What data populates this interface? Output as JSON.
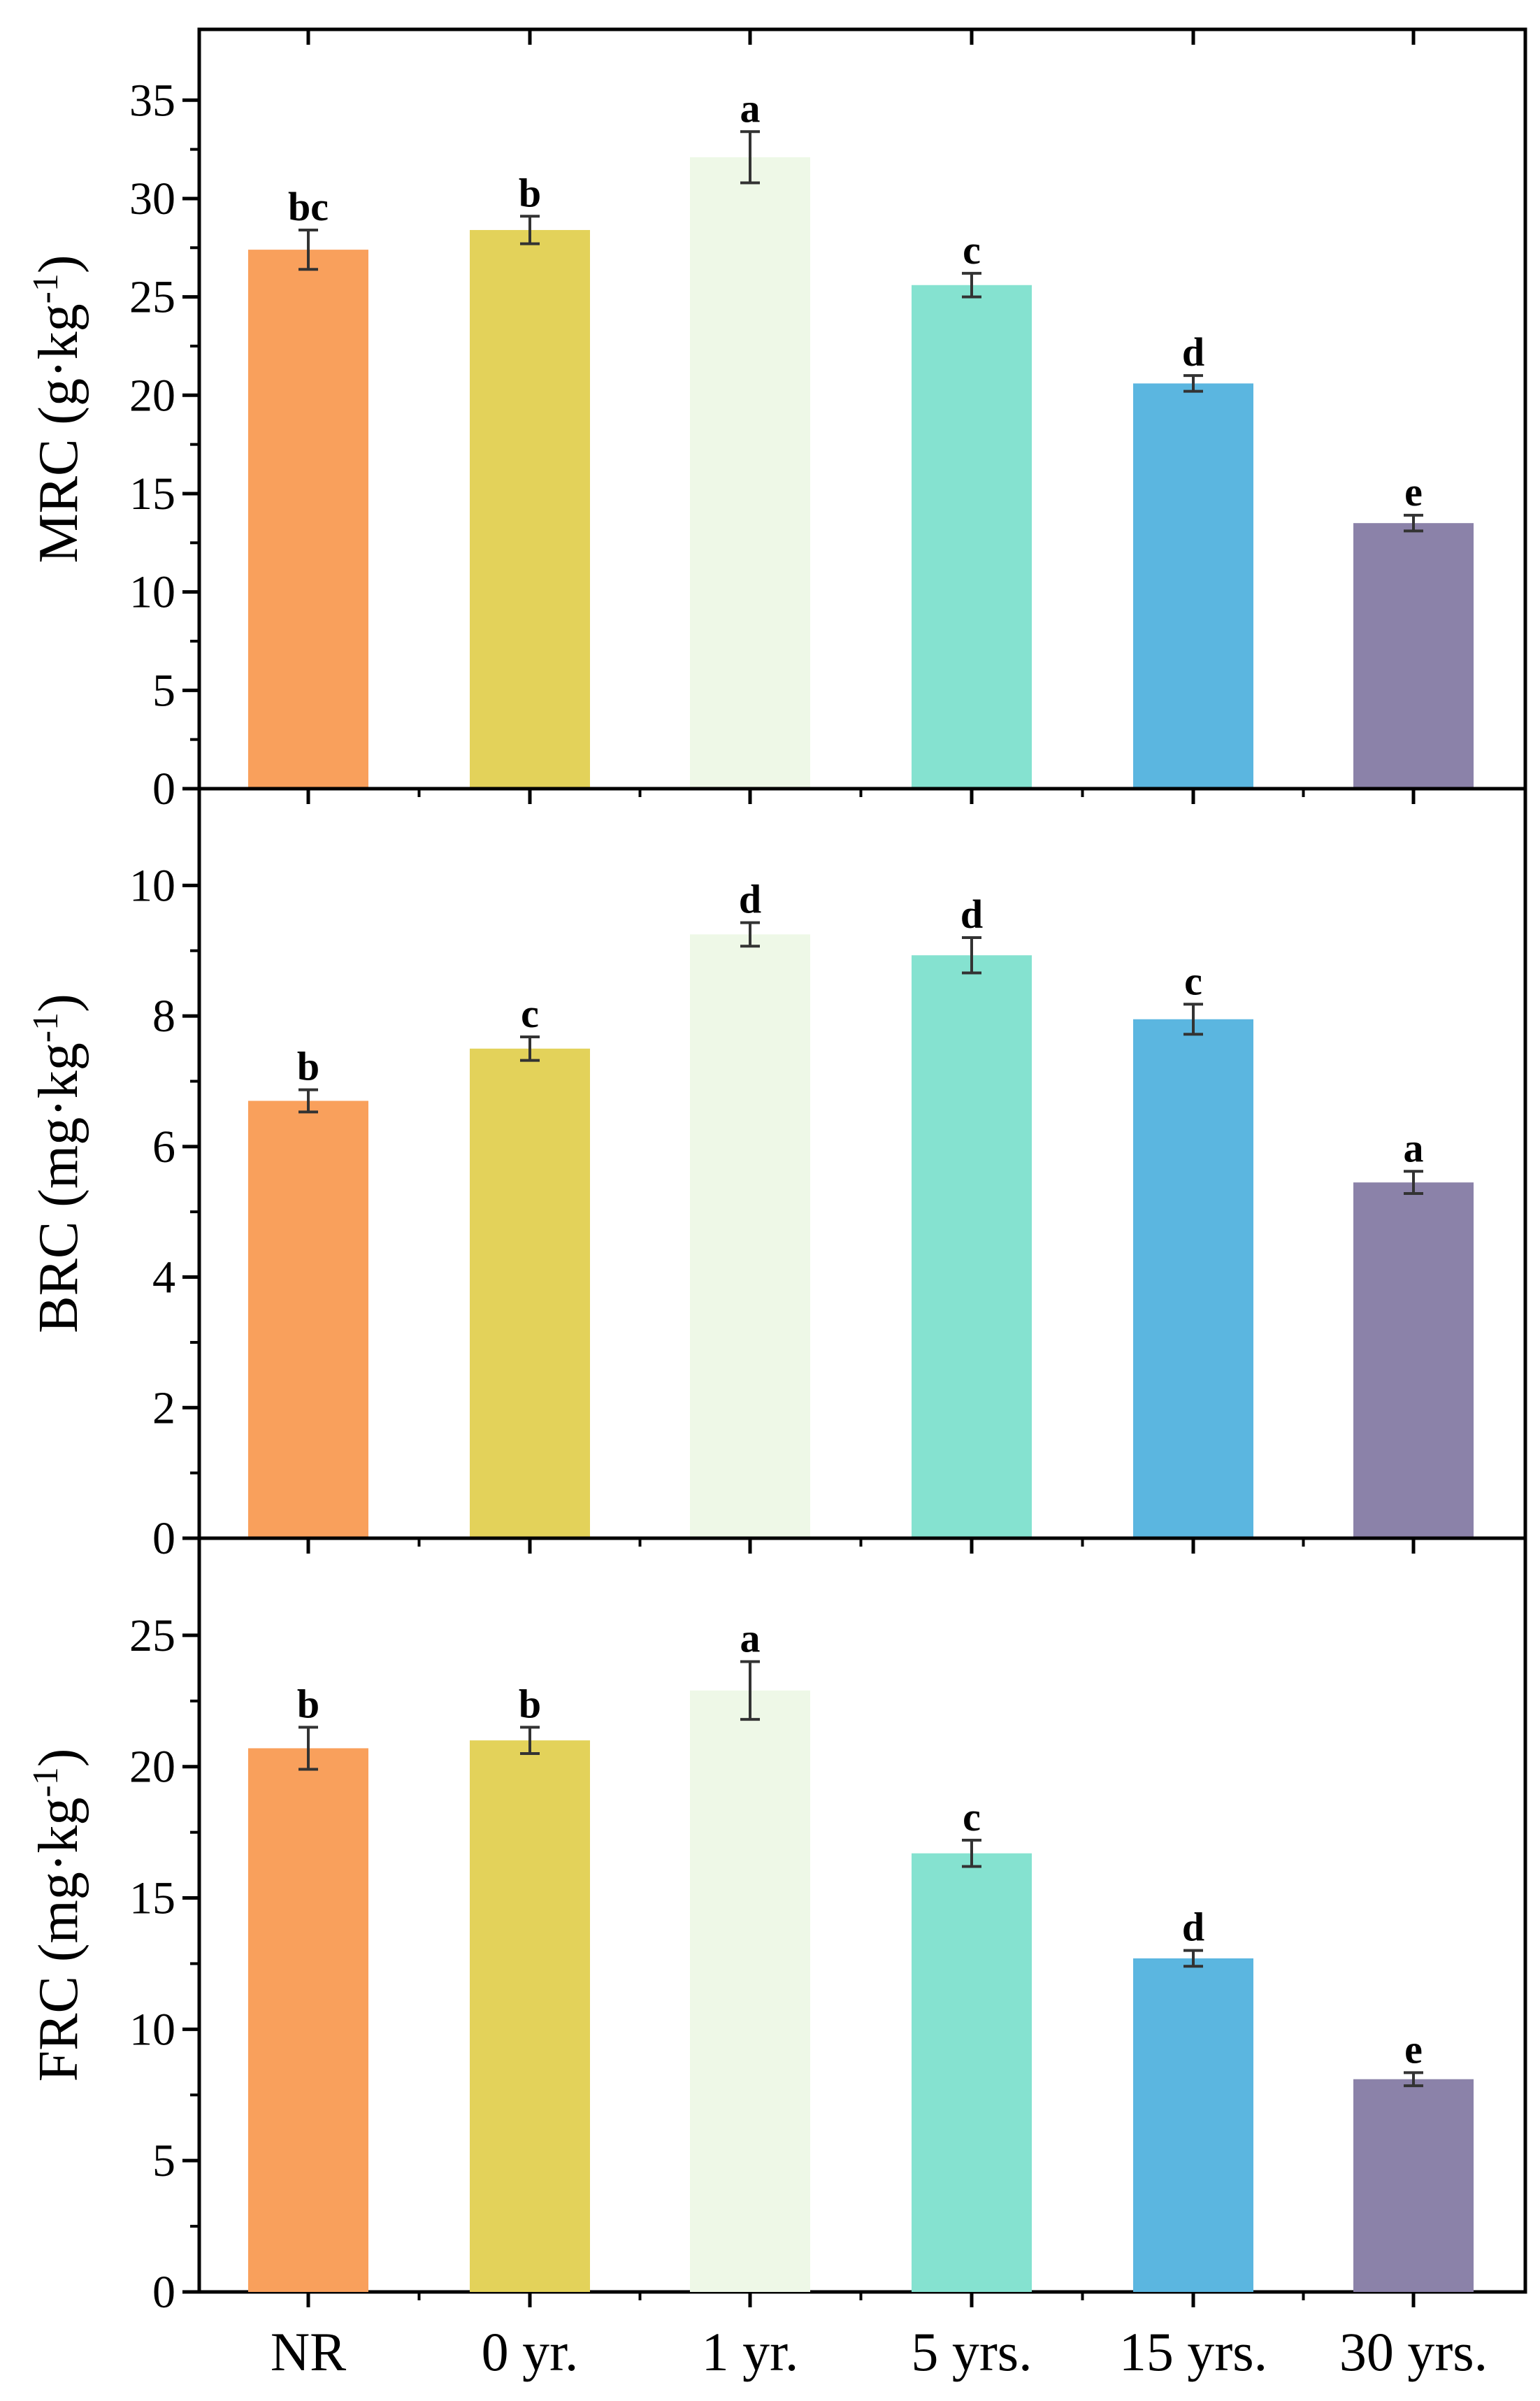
{
  "colors": {
    "bars": [
      "#F9A05C",
      "#E3D25A",
      "#EEF8E7",
      "#85E2D0",
      "#5BB6E0",
      "#8B82A9"
    ],
    "axis": "#000000",
    "error_bar": "#333333"
  },
  "chart_data": [
    {
      "type": "bar",
      "panel": "top",
      "ylabel_main": "MRC (g·kg",
      "ylabel_sup": "-1",
      "ylabel_close": ")",
      "categories": [
        "NR",
        "0 yr.",
        "1 yr.",
        "5 yrs.",
        "15 yrs.",
        "30 yrs."
      ],
      "values": [
        27.4,
        28.4,
        32.1,
        25.6,
        20.6,
        13.5
      ],
      "errors": [
        1.0,
        0.7,
        1.3,
        0.6,
        0.4,
        0.4
      ],
      "letters": [
        "bc",
        "b",
        "a",
        "c",
        "d",
        "e"
      ],
      "ylim": [
        0,
        37
      ],
      "yticks": [
        0,
        5,
        10,
        15,
        20,
        25,
        30,
        35
      ],
      "show_xticklabels": false
    },
    {
      "type": "bar",
      "panel": "middle",
      "ylabel_main": "BRC (mg·kg",
      "ylabel_sup": "-1",
      "ylabel_close": ")",
      "categories": [
        "NR",
        "0 yr.",
        "1 yr.",
        "5 yrs.",
        "15 yrs.",
        "30 yrs."
      ],
      "values": [
        6.7,
        7.5,
        9.25,
        8.93,
        7.95,
        5.45
      ],
      "errors": [
        0.17,
        0.18,
        0.18,
        0.27,
        0.23,
        0.17
      ],
      "letters": [
        "b",
        "c",
        "d",
        "d",
        "c",
        "a"
      ],
      "ylim": [
        0,
        11
      ],
      "yticks": [
        0,
        2,
        4,
        6,
        8,
        10
      ],
      "show_xticklabels": false
    },
    {
      "type": "bar",
      "panel": "bottom",
      "ylabel_main": "FRC (mg·kg",
      "ylabel_sup": "-1",
      "ylabel_close": ")",
      "categories": [
        "NR",
        "0 yr.",
        "1 yr.",
        "5 yrs.",
        "15 yrs.",
        "30 yrs."
      ],
      "values": [
        20.7,
        21.0,
        22.9,
        16.7,
        12.7,
        8.1
      ],
      "errors": [
        0.8,
        0.5,
        1.1,
        0.5,
        0.3,
        0.25
      ],
      "letters": [
        "b",
        "b",
        "a",
        "c",
        "d",
        "e"
      ],
      "ylim": [
        0,
        27.5
      ],
      "yticks": [
        0,
        5,
        10,
        15,
        20,
        25
      ],
      "show_xticklabels": true
    }
  ]
}
